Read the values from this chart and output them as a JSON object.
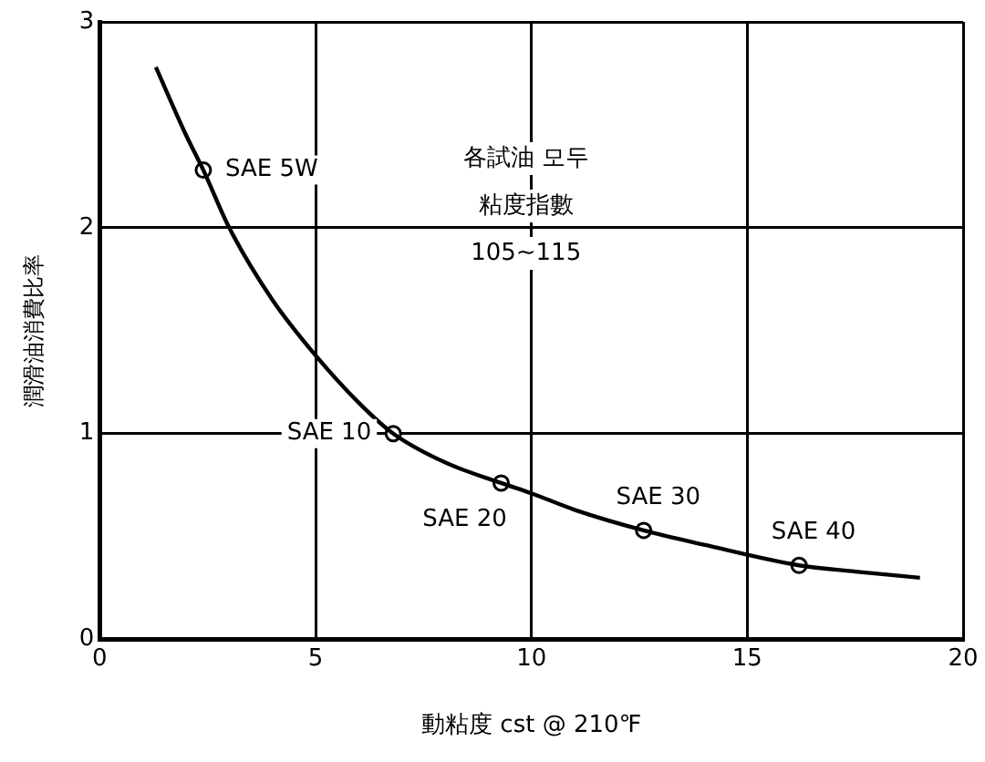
{
  "chart_data": {
    "type": "line",
    "xlabel": "動粘度 cst @ 210℉",
    "ylabel": "潤滑油消費比率",
    "xlim": [
      0,
      20
    ],
    "xticks": [
      0,
      5,
      10,
      15,
      20
    ],
    "ylim": [
      0,
      3
    ],
    "yticks": [
      0,
      1,
      2,
      3
    ],
    "grid": true,
    "legend": false,
    "series": [
      {
        "color": "#000000",
        "marker": "none",
        "line_style": "solid",
        "x": [
          1.3,
          2,
          2.4,
          3,
          4,
          5,
          6,
          6.8,
          8,
          9.3,
          10,
          11,
          12.6,
          14,
          16.2,
          17.5,
          19
        ],
        "values": [
          2.78,
          2.45,
          2.28,
          2.0,
          1.65,
          1.38,
          1.15,
          1.0,
          0.86,
          0.76,
          0.71,
          0.63,
          0.53,
          0.46,
          0.36,
          0.33,
          0.3
        ]
      },
      {
        "type": "scatter",
        "color": "#000000",
        "marker": "circle",
        "x": [
          2.4,
          6.8,
          9.3,
          12.6,
          16.2
        ],
        "values": [
          2.28,
          1.0,
          0.76,
          0.53,
          0.36
        ]
      }
    ],
    "annotations": [
      {
        "text": "SAE 5W",
        "x": 2.4,
        "y": 2.28
      },
      {
        "text": "SAE 10",
        "x": 6.8,
        "y": 1.0
      },
      {
        "text": "SAE 20",
        "x": 9.3,
        "y": 0.76
      },
      {
        "text": "SAE 30",
        "x": 12.6,
        "y": 0.53
      },
      {
        "text": "SAE 40",
        "x": 16.2,
        "y": 0.36
      },
      "各試油 모두\n粘度指數\n105~115"
    ]
  }
}
